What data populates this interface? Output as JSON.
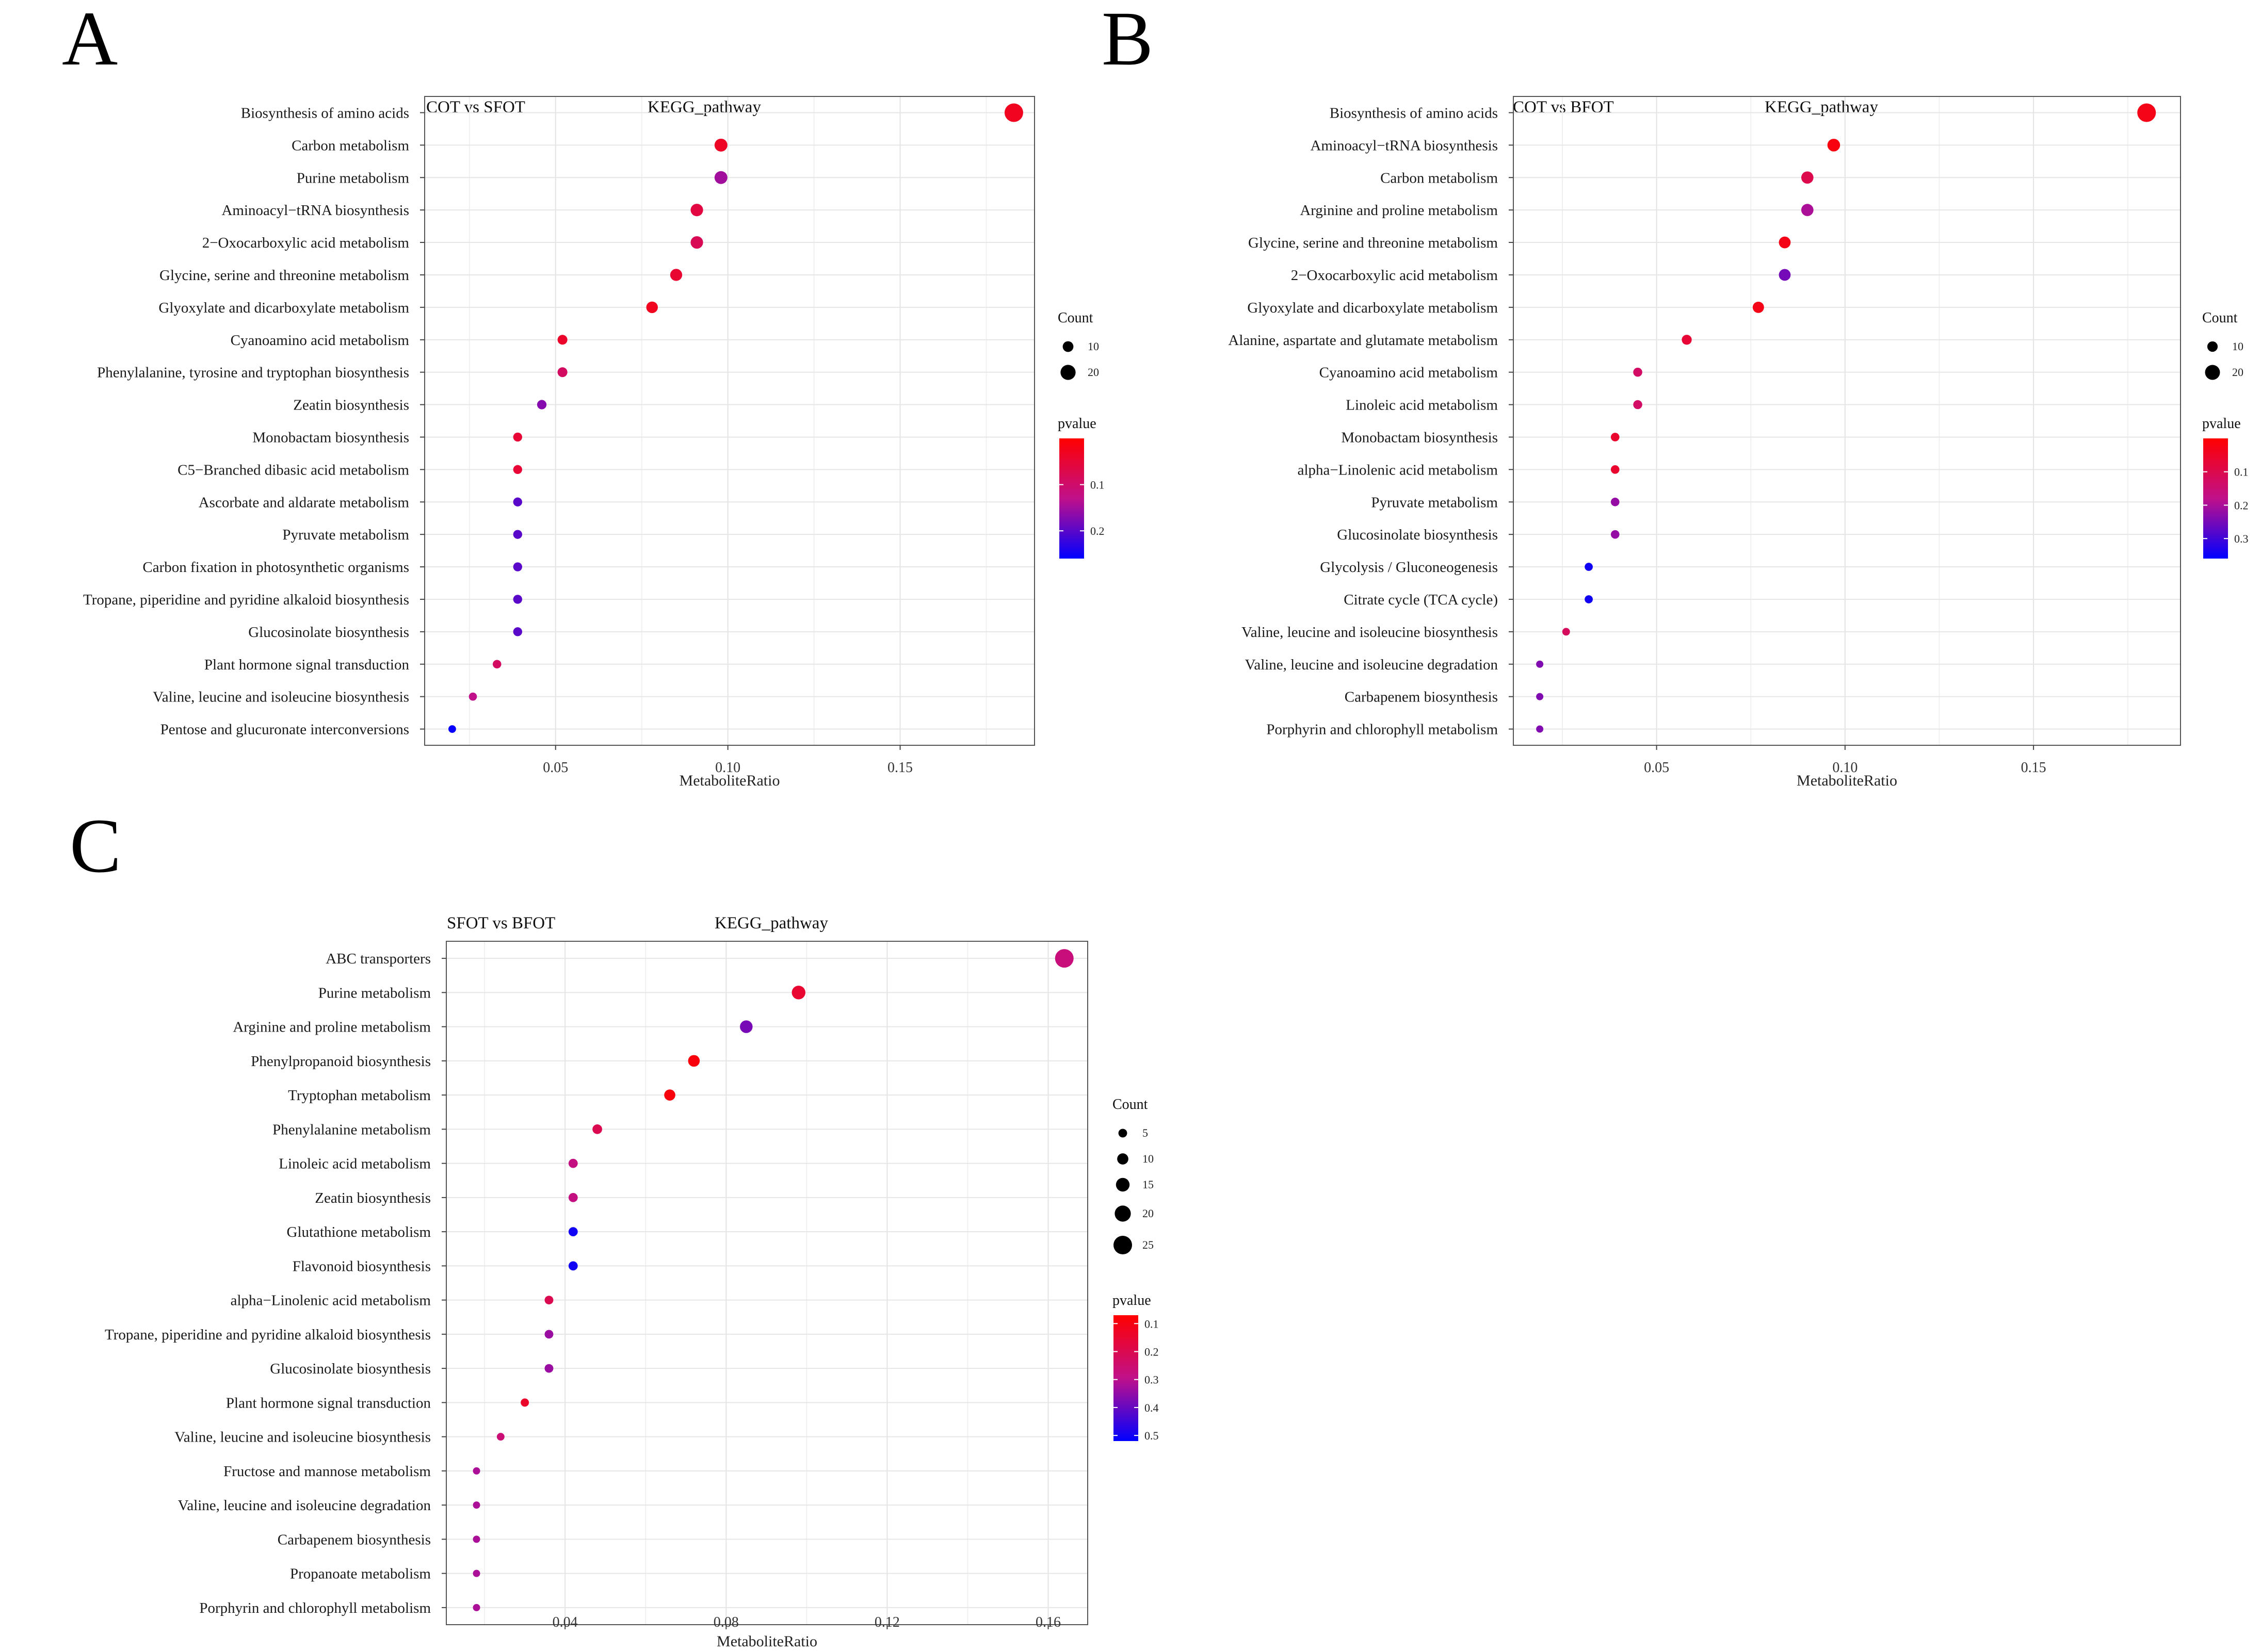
{
  "chart_data": [
    {
      "type": "scatter",
      "panel_label": "A",
      "title": "COT vs SFOT",
      "subtitle": "KEGG_pathway",
      "xlabel": "MetaboliteRatio",
      "xlim": [
        0.012,
        0.189
      ],
      "xticks": [
        0.05,
        0.1,
        0.15
      ],
      "xtick_labels": [
        "0.05",
        "0.10",
        "0.15"
      ],
      "size_legend_title": "Count",
      "size_legend": [
        10,
        20
      ],
      "size_range": [
        2,
        28
      ],
      "color_legend_title": "pvalue",
      "color_ticks": [
        0.1,
        0.2
      ],
      "color_tick_labels": [
        "0.1",
        "0.2"
      ],
      "p_range": [
        0.0,
        0.26
      ],
      "pathways": [
        {
          "name": "Biosynthesis of amino acids",
          "ratio": 0.183,
          "count": 28,
          "pvalue": 0.03
        },
        {
          "name": "Carbon metabolism",
          "ratio": 0.098,
          "count": 15,
          "pvalue": 0.035
        },
        {
          "name": "Purine metabolism",
          "ratio": 0.098,
          "count": 15,
          "pvalue": 0.15
        },
        {
          "name": "Aminoacyl−tRNA biosynthesis",
          "ratio": 0.091,
          "count": 14,
          "pvalue": 0.06
        },
        {
          "name": "2−Oxocarboxylic acid metabolism",
          "ratio": 0.091,
          "count": 14,
          "pvalue": 0.08
        },
        {
          "name": "Glycine, serine and threonine metabolism",
          "ratio": 0.085,
          "count": 13,
          "pvalue": 0.045
        },
        {
          "name": "Glyoxylate and dicarboxylate metabolism",
          "ratio": 0.078,
          "count": 12,
          "pvalue": 0.03
        },
        {
          "name": "Cyanoamino acid metabolism",
          "ratio": 0.052,
          "count": 8,
          "pvalue": 0.04
        },
        {
          "name": "Phenylalanine, tyrosine and tryptophan biosynthesis",
          "ratio": 0.052,
          "count": 8,
          "pvalue": 0.09
        },
        {
          "name": "Zeatin biosynthesis",
          "ratio": 0.046,
          "count": 7,
          "pvalue": 0.17
        },
        {
          "name": "Monobactam biosynthesis",
          "ratio": 0.039,
          "count": 6,
          "pvalue": 0.05
        },
        {
          "name": "C5−Branched dibasic acid metabolism",
          "ratio": 0.039,
          "count": 6,
          "pvalue": 0.05
        },
        {
          "name": "Ascorbate and aldarate metabolism",
          "ratio": 0.039,
          "count": 6,
          "pvalue": 0.2
        },
        {
          "name": "Pyruvate metabolism",
          "ratio": 0.039,
          "count": 6,
          "pvalue": 0.2
        },
        {
          "name": "Carbon fixation in photosynthetic organisms",
          "ratio": 0.039,
          "count": 6,
          "pvalue": 0.2
        },
        {
          "name": "Tropane, piperidine and pyridine alkaloid biosynthesis",
          "ratio": 0.039,
          "count": 6,
          "pvalue": 0.2
        },
        {
          "name": "Glucosinolate biosynthesis",
          "ratio": 0.039,
          "count": 6,
          "pvalue": 0.2
        },
        {
          "name": "Plant hormone signal transduction",
          "ratio": 0.033,
          "count": 5,
          "pvalue": 0.09
        },
        {
          "name": "Valine, leucine and isoleucine biosynthesis",
          "ratio": 0.026,
          "count": 4,
          "pvalue": 0.13
        },
        {
          "name": "Pentose and glucuronate interconversions",
          "ratio": 0.02,
          "count": 3,
          "pvalue": 0.255
        }
      ]
    },
    {
      "type": "scatter",
      "panel_label": "B",
      "title": "COT vs  BFOT",
      "subtitle": "KEGG_pathway",
      "xlabel": "MetaboliteRatio",
      "xlim": [
        0.012,
        0.189
      ],
      "xticks": [
        0.05,
        0.1,
        0.15
      ],
      "xtick_labels": [
        "0.05",
        "0.10",
        "0.15"
      ],
      "size_legend_title": "Count",
      "size_legend": [
        10,
        20
      ],
      "size_range": [
        3,
        28
      ],
      "color_legend_title": "pvalue",
      "color_ticks": [
        0.1,
        0.2,
        0.3
      ],
      "color_tick_labels": [
        "0.1",
        "0.2",
        "0.3"
      ],
      "p_range": [
        0.0,
        0.36
      ],
      "pathways": [
        {
          "name": "Biosynthesis of amino acids",
          "ratio": 0.18,
          "count": 28,
          "pvalue": 0.03
        },
        {
          "name": "Aminoacyl−tRNA biosynthesis",
          "ratio": 0.097,
          "count": 15,
          "pvalue": 0.02
        },
        {
          "name": "Carbon metabolism",
          "ratio": 0.09,
          "count": 14,
          "pvalue": 0.1
        },
        {
          "name": "Arginine and proline metabolism",
          "ratio": 0.09,
          "count": 14,
          "pvalue": 0.2
        },
        {
          "name": "Glycine, serine and threonine metabolism",
          "ratio": 0.084,
          "count": 13,
          "pvalue": 0.03
        },
        {
          "name": "2−Oxocarboxylic acid metabolism",
          "ratio": 0.084,
          "count": 13,
          "pvalue": 0.25
        },
        {
          "name": "Glyoxylate and dicarboxylate metabolism",
          "ratio": 0.077,
          "count": 12,
          "pvalue": 0.03
        },
        {
          "name": "Alanine, aspartate and glutamate metabolism",
          "ratio": 0.058,
          "count": 9,
          "pvalue": 0.07
        },
        {
          "name": "Cyanoamino acid metabolism",
          "ratio": 0.045,
          "count": 7,
          "pvalue": 0.13
        },
        {
          "name": "Linoleic acid metabolism",
          "ratio": 0.045,
          "count": 7,
          "pvalue": 0.13
        },
        {
          "name": "Monobactam biosynthesis",
          "ratio": 0.039,
          "count": 6,
          "pvalue": 0.06
        },
        {
          "name": "alpha−Linolenic acid metabolism",
          "ratio": 0.039,
          "count": 6,
          "pvalue": 0.06
        },
        {
          "name": "Pyruvate metabolism",
          "ratio": 0.039,
          "count": 6,
          "pvalue": 0.22
        },
        {
          "name": "Glucosinolate biosynthesis",
          "ratio": 0.039,
          "count": 6,
          "pvalue": 0.22
        },
        {
          "name": "Glycolysis / Gluconeogenesis",
          "ratio": 0.032,
          "count": 5,
          "pvalue": 0.345
        },
        {
          "name": "Citrate cycle (TCA cycle)",
          "ratio": 0.032,
          "count": 5,
          "pvalue": 0.345
        },
        {
          "name": "Valine, leucine and isoleucine biosynthesis",
          "ratio": 0.026,
          "count": 4,
          "pvalue": 0.12
        },
        {
          "name": "Valine, leucine and isoleucine degradation",
          "ratio": 0.019,
          "count": 3,
          "pvalue": 0.24
        },
        {
          "name": "Carbapenem biosynthesis",
          "ratio": 0.019,
          "count": 3,
          "pvalue": 0.24
        },
        {
          "name": "Porphyrin and chlorophyll metabolism",
          "ratio": 0.019,
          "count": 3,
          "pvalue": 0.24
        }
      ]
    },
    {
      "type": "scatter",
      "panel_label": "C",
      "title": "SFOT vs BFOT",
      "subtitle": "KEGG_pathway",
      "xlabel": "MetaboliteRatio",
      "xlim": [
        0.0105,
        0.1698
      ],
      "xticks": [
        0.04,
        0.08,
        0.12,
        0.16
      ],
      "xtick_labels": [
        "0.04",
        "0.08",
        "0.12",
        "0.16"
      ],
      "size_legend_title": "Count",
      "size_legend": [
        5,
        10,
        15,
        20,
        25
      ],
      "size_range": [
        2,
        25
      ],
      "color_legend_title": "pvalue",
      "color_ticks": [
        0.1,
        0.2,
        0.3,
        0.4,
        0.5
      ],
      "color_tick_labels": [
        "0.1",
        "0.2",
        "0.3",
        "0.4",
        "0.5"
      ],
      "p_range": [
        0.07,
        0.52
      ],
      "pathways": [
        {
          "name": "ABC transporters",
          "ratio": 0.164,
          "count": 25,
          "pvalue": 0.27
        },
        {
          "name": "Purine metabolism",
          "ratio": 0.098,
          "count": 15,
          "pvalue": 0.15
        },
        {
          "name": "Arginine and proline metabolism",
          "ratio": 0.085,
          "count": 13,
          "pvalue": 0.38
        },
        {
          "name": "Phenylpropanoid biosynthesis",
          "ratio": 0.072,
          "count": 11,
          "pvalue": 0.09
        },
        {
          "name": "Tryptophan metabolism",
          "ratio": 0.066,
          "count": 10,
          "pvalue": 0.09
        },
        {
          "name": "Phenylalanine metabolism",
          "ratio": 0.048,
          "count": 7,
          "pvalue": 0.2
        },
        {
          "name": "Linoleic acid metabolism",
          "ratio": 0.042,
          "count": 6,
          "pvalue": 0.28
        },
        {
          "name": "Zeatin biosynthesis",
          "ratio": 0.042,
          "count": 6,
          "pvalue": 0.28
        },
        {
          "name": "Glutathione metabolism",
          "ratio": 0.042,
          "count": 6,
          "pvalue": 0.5
        },
        {
          "name": "Flavonoid biosynthesis",
          "ratio": 0.042,
          "count": 6,
          "pvalue": 0.5
        },
        {
          "name": "alpha−Linolenic acid metabolism",
          "ratio": 0.036,
          "count": 5,
          "pvalue": 0.2
        },
        {
          "name": "Tropane, piperidine and pyridine alkaloid biosynthesis",
          "ratio": 0.036,
          "count": 5,
          "pvalue": 0.34
        },
        {
          "name": "Glucosinolate biosynthesis",
          "ratio": 0.036,
          "count": 5,
          "pvalue": 0.34
        },
        {
          "name": "Plant hormone signal transduction",
          "ratio": 0.03,
          "count": 4,
          "pvalue": 0.14
        },
        {
          "name": "Valine, leucine and isoleucine biosynthesis",
          "ratio": 0.024,
          "count": 3,
          "pvalue": 0.26
        },
        {
          "name": "Fructose and mannose metabolism",
          "ratio": 0.018,
          "count": 2,
          "pvalue": 0.32
        },
        {
          "name": "Valine, leucine and isoleucine degradation",
          "ratio": 0.018,
          "count": 2,
          "pvalue": 0.32
        },
        {
          "name": "Carbapenem biosynthesis",
          "ratio": 0.018,
          "count": 2,
          "pvalue": 0.32
        },
        {
          "name": "Propanoate metabolism",
          "ratio": 0.018,
          "count": 2,
          "pvalue": 0.32
        },
        {
          "name": "Porphyrin and chlorophyll metabolism",
          "ratio": 0.018,
          "count": 2,
          "pvalue": 0.32
        }
      ]
    }
  ]
}
